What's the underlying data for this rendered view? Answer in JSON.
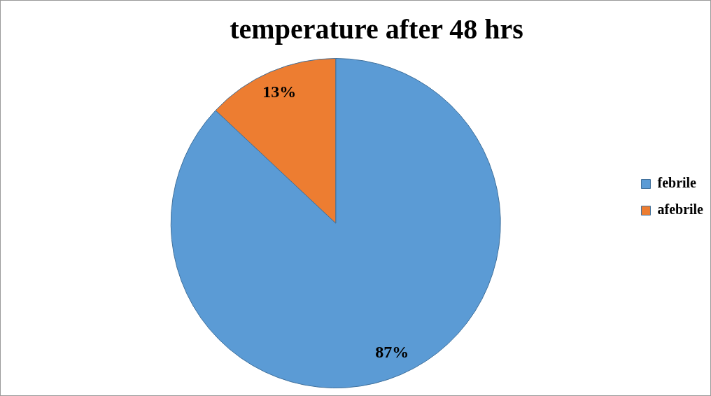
{
  "chart_data": {
    "type": "pie",
    "title": "temperature after 48 hrs",
    "categories": [
      "febrile",
      "afebrile"
    ],
    "values": [
      87,
      13
    ],
    "value_labels": [
      "87%",
      "13%"
    ],
    "colors": [
      "#5b9bd5",
      "#ed7d31"
    ],
    "legend": "right"
  }
}
